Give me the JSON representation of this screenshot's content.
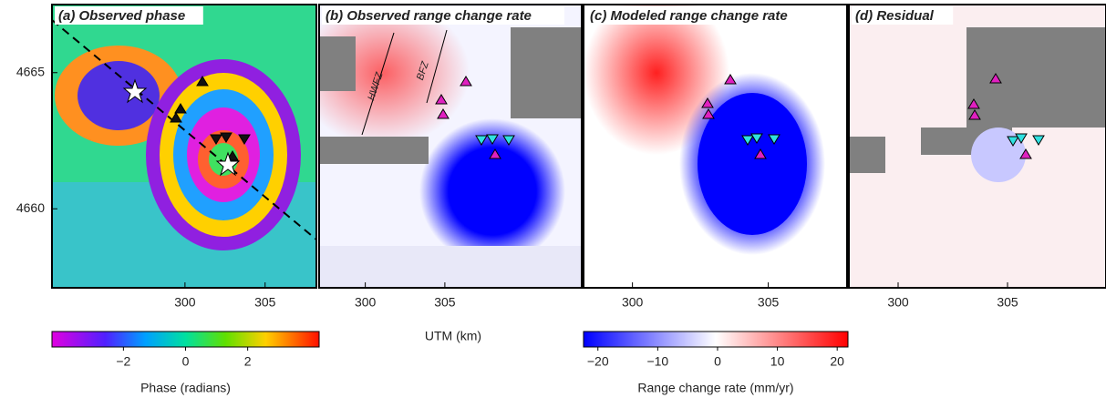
{
  "chart_data": [
    {
      "type": "map",
      "title": "(a) Observed phase",
      "xlim": [
        291.7,
        308.2
      ],
      "xticks": [
        300,
        305
      ],
      "ylim": [
        4657.1,
        4667.5
      ],
      "yticks": [
        4660,
        4665
      ]
    },
    {
      "type": "map",
      "title": "(b) Observed range change rate",
      "xlim": [
        297.1,
        313.6
      ],
      "xticks": [
        300,
        305
      ],
      "ylim": [
        4657.1,
        4667.5
      ],
      "annotations": [
        "HWFZ",
        "BFZ"
      ]
    },
    {
      "type": "map",
      "title": "(c) Modeled range change rate",
      "xlim": [
        298.2,
        307.9
      ],
      "xticks": [
        300,
        305
      ],
      "ylim": [
        4657.1,
        4667.5
      ]
    },
    {
      "type": "map",
      "title": "(d) Residual",
      "xlim": [
        297.75,
        309.5
      ],
      "xticks": [
        300,
        305
      ],
      "ylim": [
        4657.1,
        4667.5
      ]
    },
    {
      "type": "colorbar",
      "xlabel": "Phase (radians)",
      "xlim": [
        -4.3,
        4.3
      ],
      "xticks": [
        {
          "value": -2,
          "label": "−2"
        },
        0,
        2
      ]
    },
    {
      "type": "colorbar",
      "xlabel": "Range change rate (mm/yr)",
      "xlim": [
        -22.4,
        21.8
      ],
      "xticks": [
        {
          "value": -20,
          "label": "−20"
        },
        {
          "value": -10,
          "label": "−10"
        },
        0,
        10,
        20
      ]
    }
  ],
  "shared_xlabel": "UTM (km)"
}
